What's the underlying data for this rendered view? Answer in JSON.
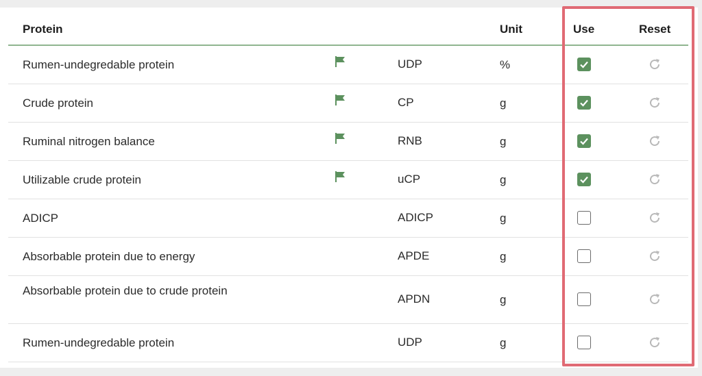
{
  "header": {
    "protein": "Protein",
    "unit": "Unit",
    "use": "Use",
    "reset": "Reset"
  },
  "colors": {
    "accent_green": "#5c915e",
    "highlight_red": "#e06a74",
    "header_rule": "#8fb58f"
  },
  "icons": {
    "flag": "flag-icon",
    "checkbox_checked": "checkmark-icon",
    "reset": "refresh-icon"
  },
  "rows": [
    {
      "name": "Rumen-undegredable protein",
      "flag": true,
      "abbr": "UDP",
      "unit": "%",
      "use": true
    },
    {
      "name": "Crude protein",
      "flag": true,
      "abbr": "CP",
      "unit": "g",
      "use": true
    },
    {
      "name": "Ruminal nitrogen balance",
      "flag": true,
      "abbr": "RNB",
      "unit": "g",
      "use": true
    },
    {
      "name": "Utilizable crude protein",
      "flag": true,
      "abbr": "uCP",
      "unit": "g",
      "use": true
    },
    {
      "name": "ADICP",
      "flag": false,
      "abbr": "ADICP",
      "unit": "g",
      "use": false
    },
    {
      "name": "Absorbable protein due to energy",
      "flag": false,
      "abbr": "APDE",
      "unit": "g",
      "use": false
    },
    {
      "name": "Absorbable protein due to crude protein",
      "flag": false,
      "abbr": "APDN",
      "unit": "g",
      "use": false
    },
    {
      "name": "Rumen-undegredable protein",
      "flag": false,
      "abbr": "UDP",
      "unit": "g",
      "use": false
    }
  ]
}
